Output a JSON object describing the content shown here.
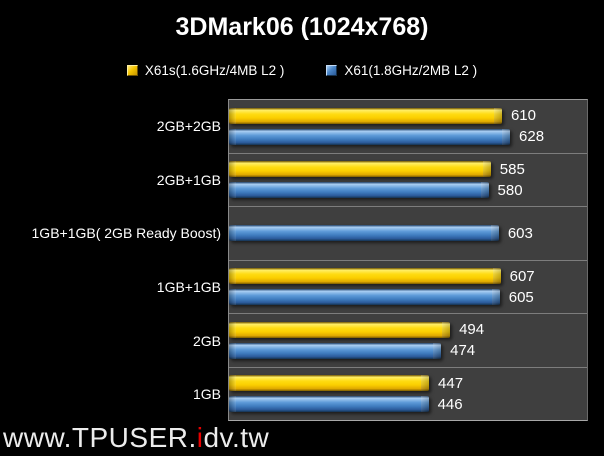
{
  "title": "3DMark06 (1024x768)",
  "legend": [
    {
      "label": "X61s(1.6GHz/4MB L2 )",
      "color": "#F4C400"
    },
    {
      "label": "X61(1.8GHz/2MB L2 )",
      "color": "#4A86C8"
    }
  ],
  "watermark": {
    "prefix": "www.TPUSER.",
    "highlight": "i",
    "suffix": "dv.tw",
    "highlight_color": "#E60000"
  },
  "chart_data": {
    "type": "bar",
    "orientation": "horizontal",
    "title": "3DMark06 (1024x768)",
    "categories": [
      "2GB+2GB",
      "2GB+1GB",
      "1GB+1GB( 2GB Ready Boost)",
      "1GB+1GB",
      "2GB",
      "1GB"
    ],
    "series": [
      {
        "name": "X61s(1.6GHz/4MB L2 )",
        "color": "#F4C400",
        "values": [
          610,
          585,
          null,
          607,
          494,
          447
        ]
      },
      {
        "name": "X61(1.8GHz/2MB L2 )",
        "color": "#4A86C8",
        "values": [
          628,
          580,
          603,
          605,
          474,
          446
        ]
      }
    ],
    "value_axis": {
      "min": 0,
      "max": 800,
      "visible": false
    },
    "data_labels": true,
    "grid": "category-separators-only",
    "legend_position": "top",
    "plot_bg": "#3F3F3F",
    "page_bg": "#000000"
  }
}
